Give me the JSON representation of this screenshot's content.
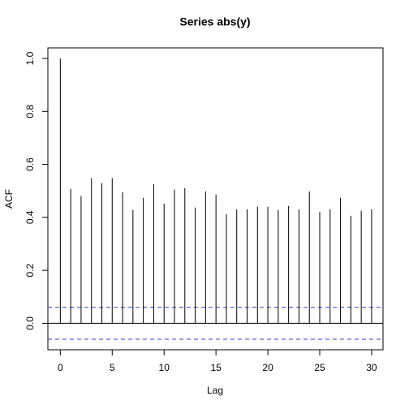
{
  "chart_data": {
    "type": "stem",
    "title": "Series  abs(y)",
    "x_label": "Lag",
    "y_label": "ACF",
    "x": [
      0,
      1,
      2,
      3,
      4,
      5,
      6,
      7,
      8,
      9,
      10,
      11,
      12,
      13,
      14,
      15,
      16,
      17,
      18,
      19,
      20,
      21,
      22,
      23,
      24,
      25,
      26,
      27,
      28,
      29,
      30
    ],
    "values": [
      1.0,
      0.508,
      0.48,
      0.548,
      0.529,
      0.548,
      0.495,
      0.428,
      0.474,
      0.525,
      0.452,
      0.505,
      0.51,
      0.437,
      0.498,
      0.486,
      0.412,
      0.43,
      0.43,
      0.44,
      0.44,
      0.428,
      0.443,
      0.43,
      0.498,
      0.421,
      0.43,
      0.474,
      0.406,
      0.425,
      0.43
    ],
    "color": "#000000",
    "conf_limits": [
      0.06,
      -0.06
    ],
    "conf_color": "#3b3bd1",
    "xlim": [
      -1.2,
      31.1
    ],
    "ylim": [
      -0.1,
      1.04
    ],
    "xticks": [
      0,
      5,
      10,
      15,
      20,
      25,
      30
    ],
    "yticks": [
      {
        "value": 0,
        "label": "0.0"
      },
      0.2,
      0.4,
      0.6,
      0.8,
      {
        "value": 1,
        "label": "1.0"
      }
    ]
  }
}
